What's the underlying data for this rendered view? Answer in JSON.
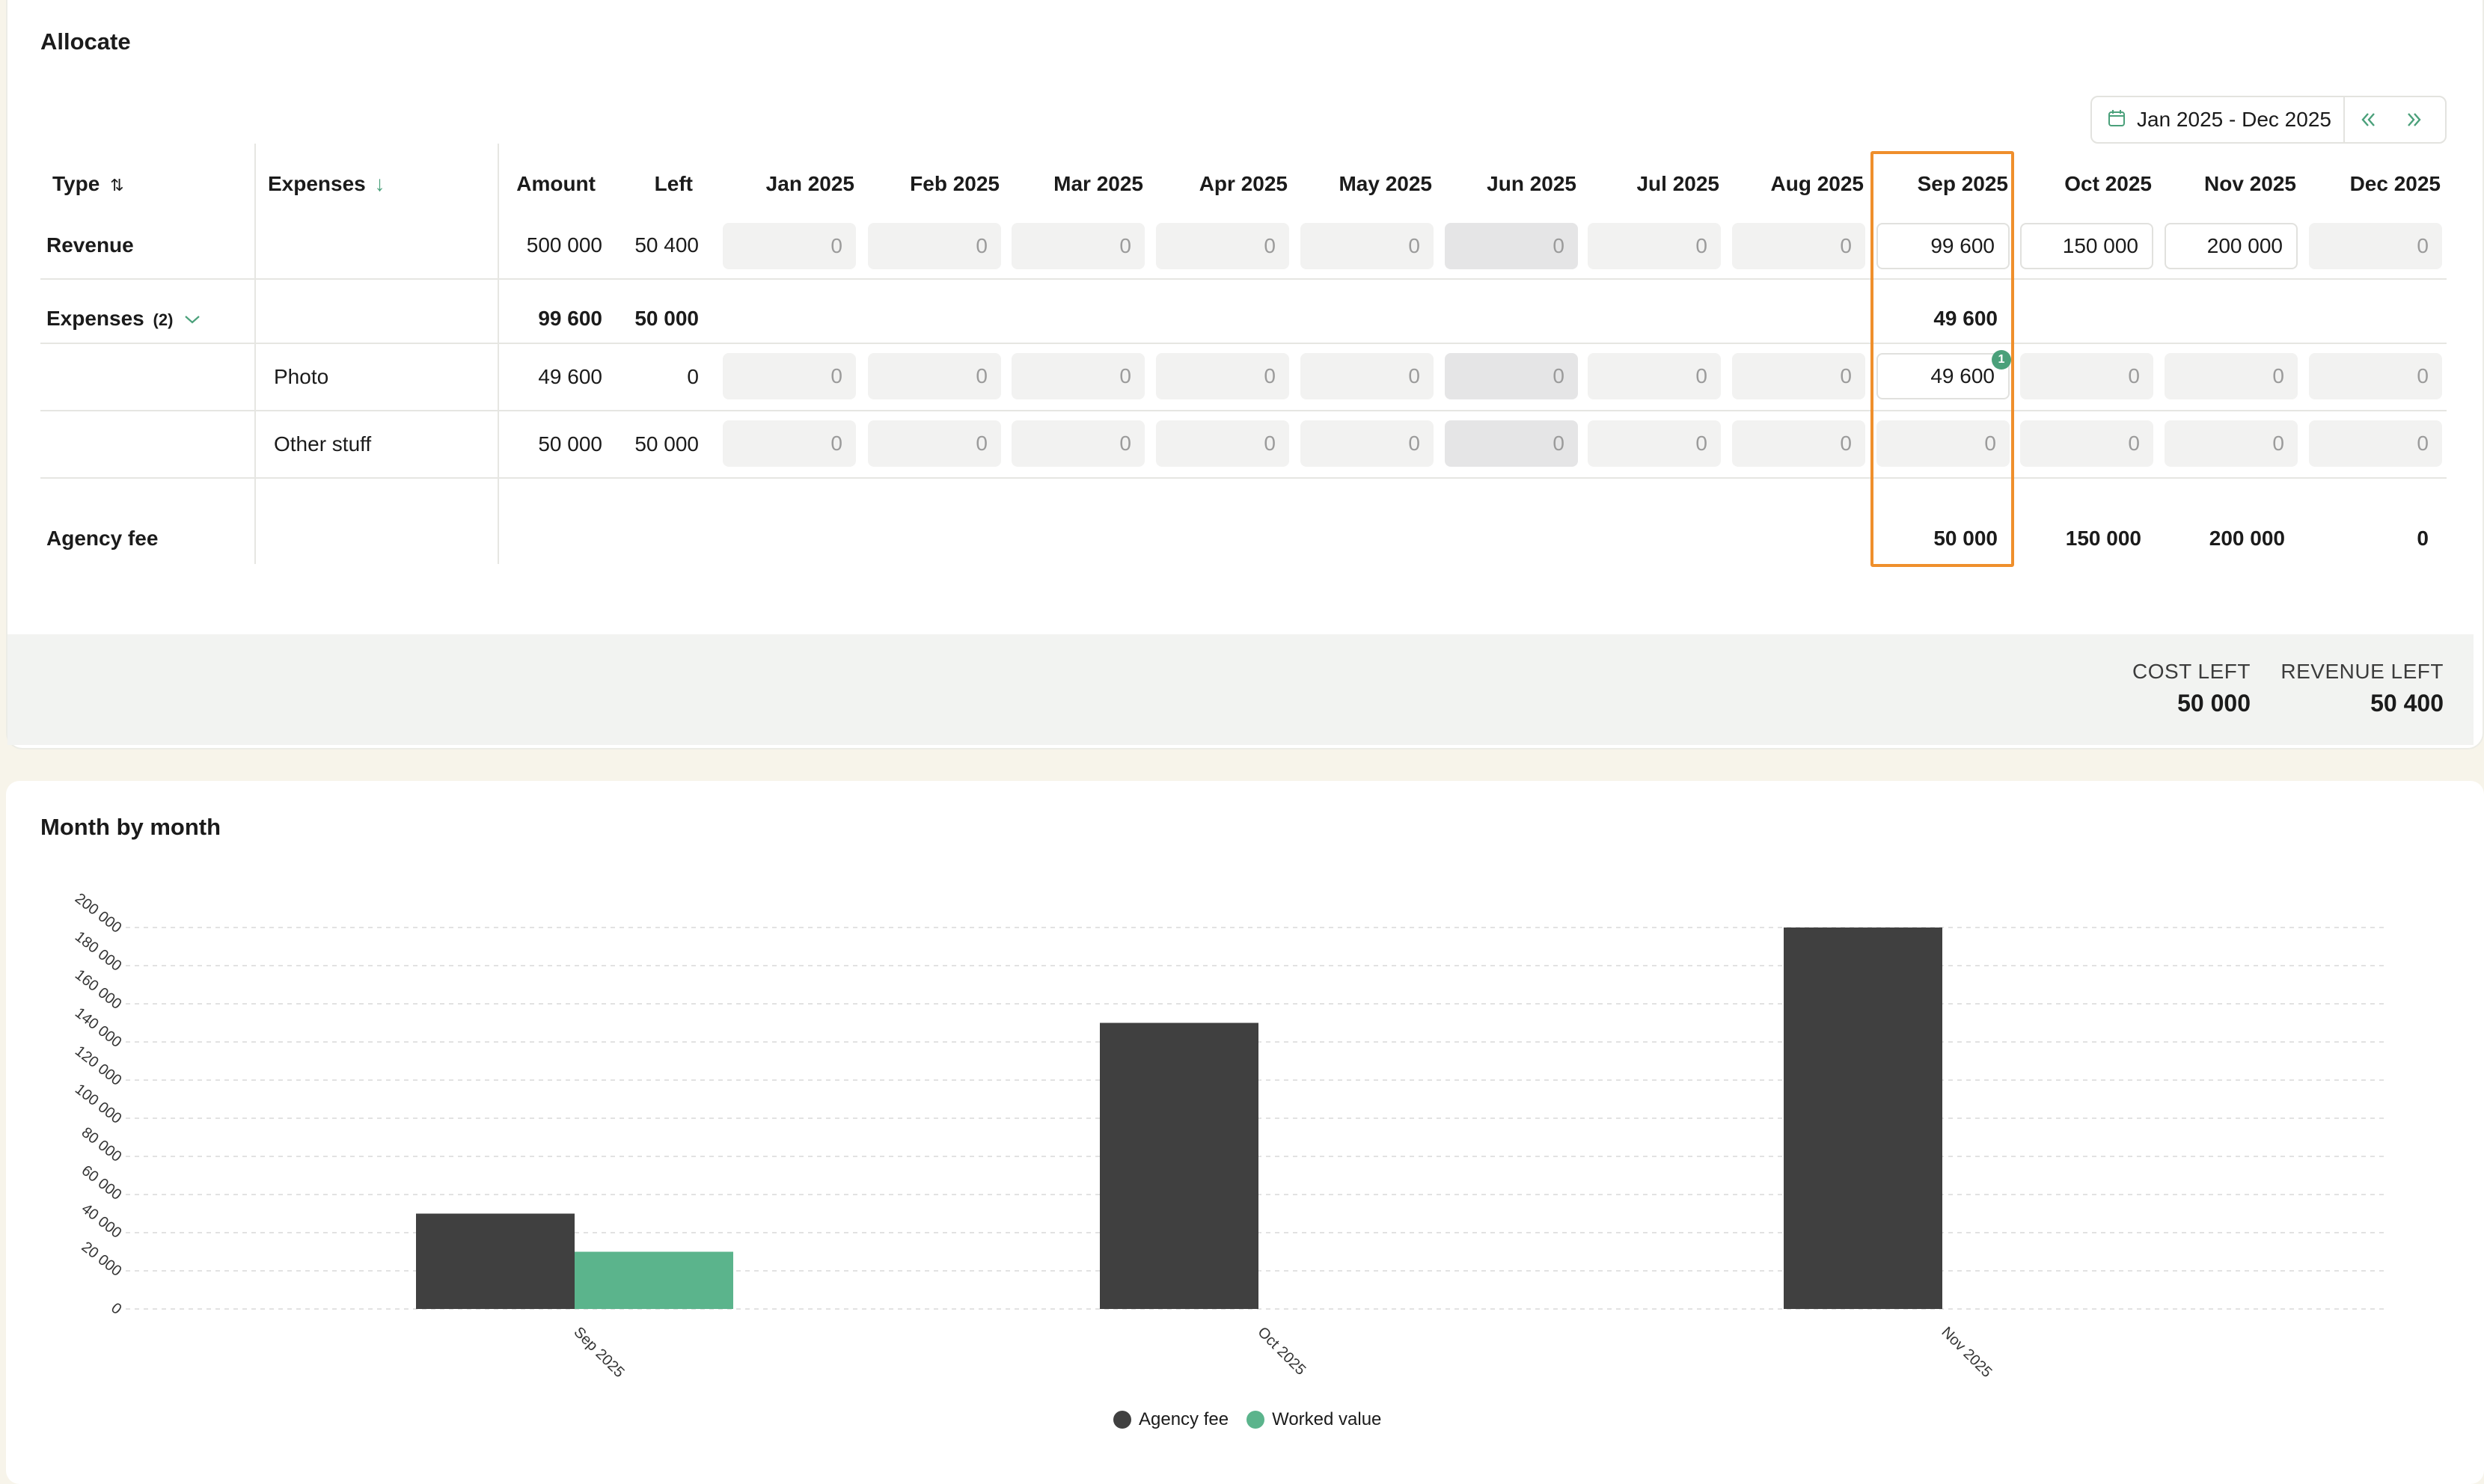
{
  "allocate": {
    "title": "Allocate",
    "date_range": {
      "label": "Jan 2025 - Dec 2025",
      "icon": "calendar-icon",
      "prev_icon": "double-chevron-left-icon",
      "next_icon": "double-chevron-right-icon"
    },
    "columns": {
      "type": "Type",
      "expenses": "Expenses",
      "amount": "Amount",
      "left": "Left",
      "months": [
        "Jan 2025",
        "Feb 2025",
        "Mar 2025",
        "Apr 2025",
        "May 2025",
        "Jun 2025",
        "Jul 2025",
        "Aug 2025",
        "Sep 2025",
        "Oct 2025",
        "Nov 2025",
        "Dec 2025"
      ]
    },
    "rows": {
      "revenue": {
        "type": "Revenue",
        "amount": "500 000",
        "left": "50 400",
        "months": [
          "0",
          "0",
          "0",
          "0",
          "0",
          "0",
          "0",
          "0",
          "99 600",
          "150 000",
          "200 000",
          "0"
        ]
      },
      "expenses_group": {
        "type": "Expenses",
        "count": "(2)",
        "amount": "99 600",
        "left": "50 000",
        "sep_total": "49 600"
      },
      "photo": {
        "expense": "Photo",
        "amount": "49 600",
        "left": "0",
        "months": [
          "0",
          "0",
          "0",
          "0",
          "0",
          "0",
          "0",
          "0",
          "49 600",
          "0",
          "0",
          "0"
        ],
        "badge": "1"
      },
      "other": {
        "expense": "Other stuff",
        "amount": "50 000",
        "left": "50 000",
        "months": [
          "0",
          "0",
          "0",
          "0",
          "0",
          "0",
          "0",
          "0",
          "0",
          "0",
          "0",
          "0"
        ]
      },
      "agency_fee": {
        "type": "Agency fee",
        "sep": "50 000",
        "oct": "150 000",
        "nov": "200 000",
        "dec": "0"
      }
    },
    "summary": {
      "cost_left_label": "COST LEFT",
      "cost_left_value": "50 000",
      "revenue_left_label": "REVENUE LEFT",
      "revenue_left_value": "50 400"
    }
  },
  "chart_card": {
    "title": "Month by month"
  },
  "chart_data": {
    "type": "bar",
    "categories": [
      "Sep 2025",
      "Oct 2025",
      "Nov 2025"
    ],
    "series": [
      {
        "name": "Agency fee",
        "values": [
          50000,
          150000,
          200000
        ],
        "color": "#404040"
      },
      {
        "name": "Worked value",
        "values": [
          30000,
          0,
          0
        ],
        "color": "#5bb48c"
      }
    ],
    "y_ticks": [
      "0",
      "20 000",
      "40 000",
      "60 000",
      "80 000",
      "100 000",
      "120 000",
      "140 000",
      "160 000",
      "180 000",
      "200 000"
    ],
    "ylim": [
      0,
      200000
    ],
    "grid": true,
    "legend_position": "bottom"
  }
}
